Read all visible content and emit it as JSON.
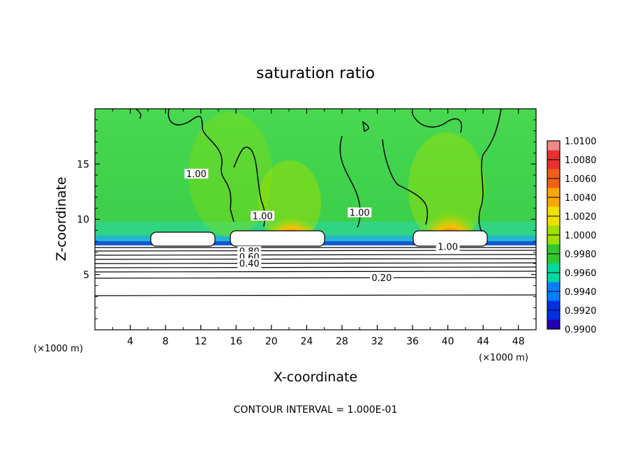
{
  "chart_data": {
    "type": "heatmap",
    "title": "saturation ratio",
    "xlabel": "X-coordinate",
    "ylabel": "Z-coordinate",
    "x_unit_left": "(×1000 m)",
    "x_unit_right": "(×1000 m)",
    "xlim": [
      0,
      50
    ],
    "ylim": [
      0,
      20
    ],
    "x_ticks": [
      "4",
      "8",
      "12",
      "16",
      "20",
      "24",
      "28",
      "32",
      "36",
      "40",
      "44",
      "48"
    ],
    "y_ticks": [
      "5",
      "10",
      "15"
    ],
    "colorbar": {
      "levels": [
        "1.0100",
        "1.0080",
        "1.0060",
        "1.0040",
        "1.0020",
        "1.0000",
        "0.9980",
        "0.9960",
        "0.9940",
        "0.9920",
        "0.9900"
      ],
      "colors": [
        "#f08a8a",
        "#e83030",
        "#f06018",
        "#f8a800",
        "#f0e000",
        "#a0e000",
        "#30c830",
        "#00d8a0",
        "#0080ff",
        "#0030e0",
        "#2000b0",
        "#6000a0"
      ]
    },
    "contour_labels": [
      {
        "text": "1.00",
        "x": 11.5,
        "z": 14.0
      },
      {
        "text": "1.00",
        "x": 19.0,
        "z": 10.2
      },
      {
        "text": "1.00",
        "x": 30.0,
        "z": 10.5
      },
      {
        "text": "1.00",
        "x": 40.0,
        "z": 7.4
      },
      {
        "text": "0.80",
        "x": 17.5,
        "z": 7.0
      },
      {
        "text": "0.60",
        "x": 17.5,
        "z": 6.5
      },
      {
        "text": "0.40",
        "x": 17.5,
        "z": 5.9
      },
      {
        "text": "0.20",
        "x": 32.5,
        "z": 4.6
      }
    ],
    "contour_interval_text": "CONTOUR INTERVAL = 1.000E-01",
    "grid": false,
    "legend": "right"
  }
}
